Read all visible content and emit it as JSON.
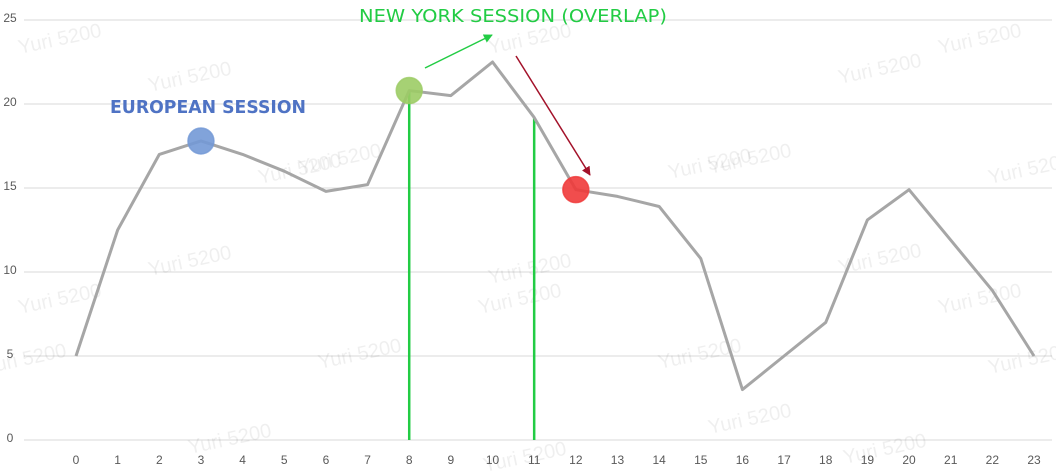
{
  "chart_data": {
    "type": "line",
    "x": [
      0,
      1,
      2,
      3,
      4,
      5,
      6,
      7,
      8,
      9,
      10,
      11,
      12,
      13,
      14,
      15,
      16,
      17,
      18,
      19,
      20,
      21,
      22,
      23
    ],
    "series": [
      {
        "color": "#a6a6a6",
        "values": [
          5,
          12.5,
          17,
          17.8,
          17,
          16,
          14.8,
          15.2,
          20.8,
          20.5,
          22.5,
          19.2,
          14.9,
          14.5,
          13.9,
          10.8,
          3,
          5,
          7,
          13.1,
          14.9,
          11.9,
          8.9,
          5
        ]
      }
    ],
    "xlim": [
      0,
      23
    ],
    "xticks": [
      0,
      1,
      2,
      3,
      4,
      5,
      6,
      7,
      8,
      9,
      10,
      11,
      12,
      13,
      14,
      15,
      16,
      17,
      18,
      19,
      20,
      21,
      22,
      23
    ],
    "ylim": [
      0,
      25
    ],
    "yticks": [
      0,
      5,
      10,
      15,
      20,
      25
    ],
    "grid": true,
    "highlights": [
      {
        "x": 3,
        "color": "#7399d6"
      },
      {
        "x": 8,
        "color": "#9ccc65"
      },
      {
        "x": 12,
        "color": "#f03a3a"
      }
    ],
    "session_lines": {
      "x": [
        8,
        11
      ],
      "color": "#22cc44"
    },
    "annotations": [
      {
        "text": "EUROPEAN SESSION",
        "color": "#4f73c4"
      },
      {
        "text": "NEW YORK SESSION (OVERLAP)",
        "color": "#22cc44"
      }
    ],
    "watermark": "Yuri 5200"
  }
}
